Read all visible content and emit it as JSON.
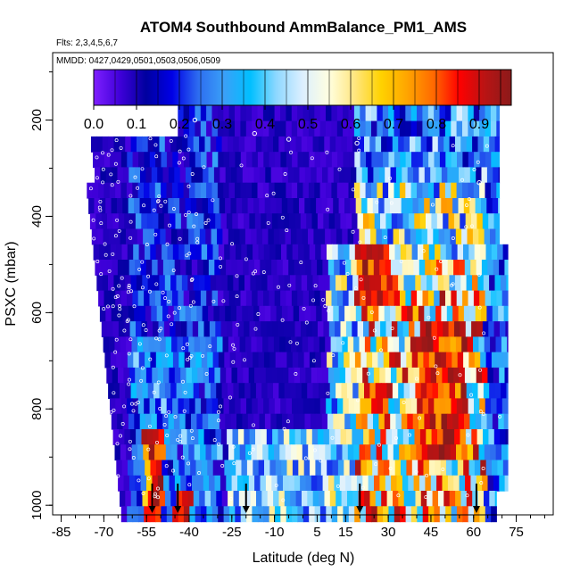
{
  "chart_data": {
    "type": "heatmap",
    "title": "ATOM4 Southbound AmmBalance_PM1_AMS",
    "subtitle_flights": "Flts: 2,3,4,5,6,7",
    "subtitle_dates": "MMDD: 0427,0429,0501,0503,0506,0509",
    "xlabel": "Latitude (deg N)",
    "ylabel": "PSXC (mbar)",
    "xlim": [
      -88,
      88
    ],
    "ylim": [
      1020,
      60
    ],
    "x_ticks": [
      "-85",
      "-70",
      "-55",
      "-40",
      "-25",
      "-10",
      "5",
      "15",
      "30",
      "45",
      "60",
      "75"
    ],
    "y_ticks": [
      "200",
      "400",
      "600",
      "800",
      "1000"
    ],
    "colorbar": {
      "range": [
        0,
        0.975
      ],
      "tick_labels": [
        "0.0",
        "0.1",
        "0.2",
        "0.3",
        "0.4",
        "0.5",
        "0.6",
        "0.7",
        "0.8",
        "0.9"
      ],
      "colors": [
        "#7f1fff",
        "#3f00d9",
        "#00009f",
        "#0000e6",
        "#2d6cf0",
        "#3aa0f8",
        "#00bfff",
        "#8fd8ff",
        "#dcefff",
        "#ffffe0",
        "#ffe680",
        "#ffd200",
        "#ffa500",
        "#ff6a00",
        "#ff0000",
        "#b81414",
        "#8b1a1a"
      ]
    },
    "arrow_latitudes": [
      -53,
      -44,
      -20,
      20,
      61
    ],
    "grid": false,
    "legend": "top colorbar"
  }
}
